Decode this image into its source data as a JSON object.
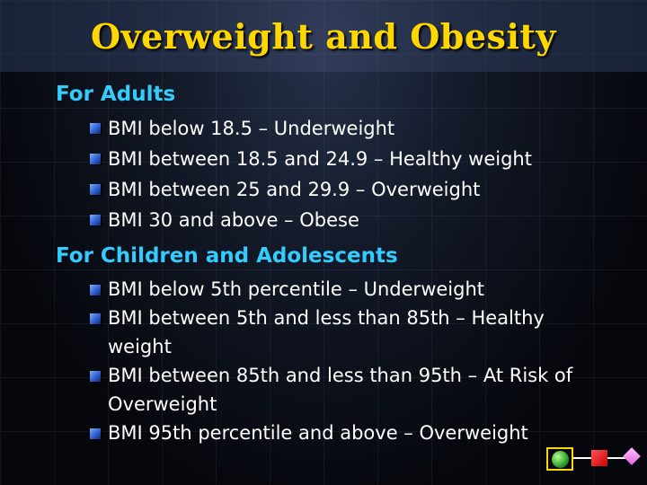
{
  "slide": {
    "title": "Overweight and Obesity",
    "sections": [
      {
        "heading": "For Adults",
        "items": [
          "BMI below 18.5 – Underweight",
          "BMI between 18.5 and 24.9 – Healthy weight",
          "BMI between 25 and 29.9 – Overweight",
          "BMI 30 and above – Obese"
        ]
      },
      {
        "heading": "For Children and Adolescents",
        "items": [
          "BMI below 5th percentile – Underweight",
          "BMI between 5th and less than 85th – Healthy weight",
          "BMI between 85th and less than 95th – At Risk of Overweight",
          "BMI 95th percentile and above – Overweight"
        ]
      }
    ]
  },
  "colors": {
    "title": "#ffd700",
    "heading": "#33ccff",
    "text": "#ffffff",
    "bullet": "#2f60d0"
  },
  "icons": {
    "nav": [
      "green-circle-icon",
      "red-square-icon",
      "pink-diamond-icon"
    ]
  }
}
